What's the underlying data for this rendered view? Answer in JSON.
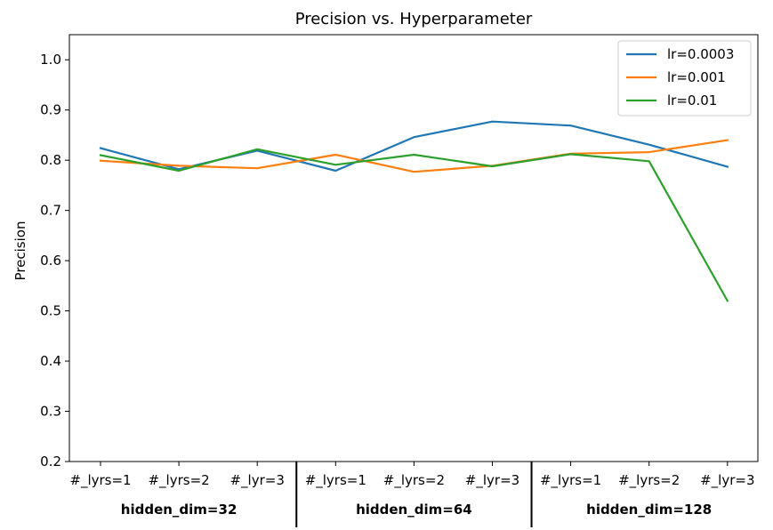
{
  "chart_data": {
    "type": "line",
    "title": "Precision vs. Hyperparameter",
    "xlabel": "",
    "ylabel": "Precision",
    "ylim": [
      0.2,
      1.05
    ],
    "yticks": [
      "0.2",
      "0.3",
      "0.4",
      "0.5",
      "0.6",
      "0.7",
      "0.8",
      "0.9",
      "1.0"
    ],
    "categories": [
      "#_lyrs=1",
      "#_lyrs=2",
      "#_lyr=3",
      "#_lyrs=1",
      "#_lyrs=2",
      "#_lyr=3",
      "#_lyrs=1",
      "#_lyrs=2",
      "#_lyr=3"
    ],
    "groups": [
      "hidden_dim=32",
      "hidden_dim=64",
      "hidden_dim=128"
    ],
    "grid": false,
    "legend_position": "top-right",
    "series": [
      {
        "name": "lr=0.0003",
        "color": "#1f77b4",
        "values": [
          0.824,
          0.782,
          0.819,
          0.779,
          0.846,
          0.877,
          0.869,
          0.831,
          0.787
        ]
      },
      {
        "name": "lr=0.001",
        "color": "#ff7f0e",
        "values": [
          0.799,
          0.789,
          0.784,
          0.811,
          0.777,
          0.789,
          0.813,
          0.816,
          0.84
        ]
      },
      {
        "name": "lr=0.01",
        "color": "#2ca02c",
        "values": [
          0.81,
          0.779,
          0.822,
          0.791,
          0.811,
          0.788,
          0.812,
          0.798,
          0.52
        ]
      }
    ]
  }
}
